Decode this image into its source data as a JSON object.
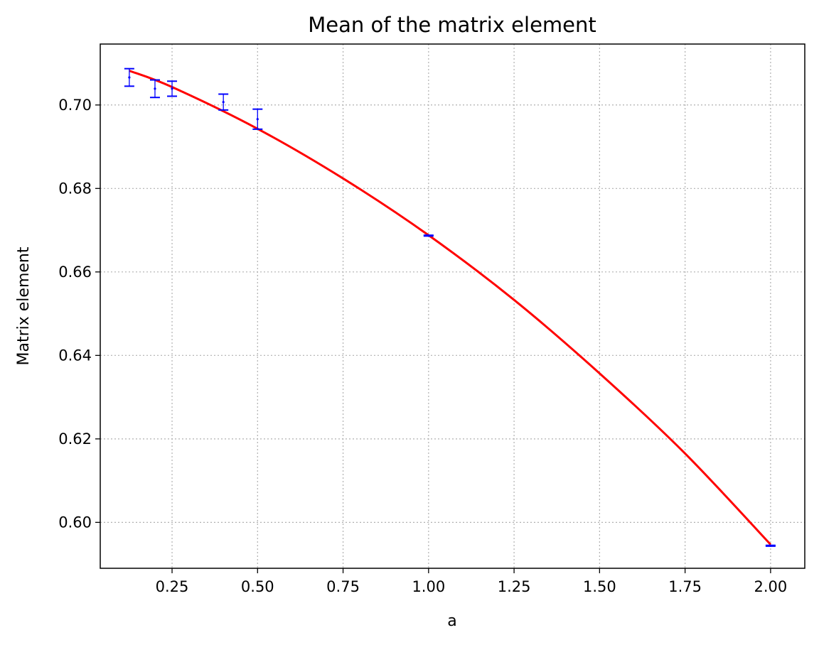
{
  "chart_data": {
    "type": "scatter",
    "title": "Mean of the matrix element",
    "xlabel": "a",
    "ylabel": "Matrix element",
    "xlim": [
      0.04,
      2.1
    ],
    "ylim": [
      0.589,
      0.7146
    ],
    "xticks": [
      0.25,
      0.5,
      0.75,
      1.0,
      1.25,
      1.5,
      1.75,
      2.0
    ],
    "xtick_labels": [
      "0.25",
      "0.50",
      "0.75",
      "1.00",
      "1.25",
      "1.50",
      "1.75",
      "2.00"
    ],
    "yticks": [
      0.6,
      0.62,
      0.64,
      0.66,
      0.68,
      0.7
    ],
    "ytick_labels": [
      "0.60",
      "0.62",
      "0.64",
      "0.66",
      "0.68",
      "0.70"
    ],
    "grid": true,
    "series": [
      {
        "kind": "errorbar",
        "color": "#0000ff",
        "x": [
          0.125,
          0.2,
          0.25,
          0.4,
          0.5,
          1.0,
          2.0
        ],
        "y": [
          0.7066,
          0.7039,
          0.7039,
          0.7007,
          0.6966,
          0.6687,
          0.5944
        ],
        "yerr": [
          0.0021,
          0.0021,
          0.0018,
          0.0019,
          0.0024,
          0.0001,
          0.0001
        ]
      },
      {
        "kind": "line",
        "color": "#ff0000",
        "x": [
          0.125,
          0.25,
          0.5,
          0.75,
          1.0,
          1.25,
          1.5,
          1.75,
          2.0
        ],
        "y": [
          0.7082,
          0.7043,
          0.6943,
          0.6824,
          0.6688,
          0.6533,
          0.6357,
          0.6165,
          0.5947
        ]
      }
    ]
  }
}
